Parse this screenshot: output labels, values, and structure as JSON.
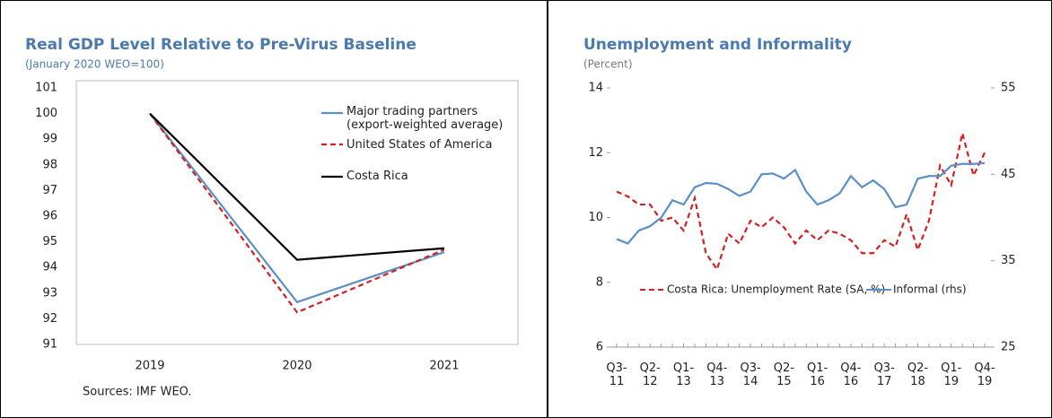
{
  "chart_data": [
    {
      "type": "line",
      "title": "Real GDP Level Relative to Pre-Virus Baseline",
      "subtitle": "(January 2020 WEO=100)",
      "categories": [
        "2019",
        "2020",
        "2021"
      ],
      "series": [
        {
          "name": "Major trading partners (export-weighted average)",
          "color": "#5b8fc7",
          "linestyle": "solid",
          "values": [
            100,
            92.65,
            94.6
          ]
        },
        {
          "name": "United States of America",
          "color": "#d42020",
          "linestyle": "dashed",
          "values": [
            100,
            92.25,
            94.7
          ]
        },
        {
          "name": "Costa Rica",
          "color": "#000000",
          "linestyle": "solid",
          "values": [
            100,
            94.3,
            94.75
          ]
        }
      ],
      "ylim": [
        91,
        101
      ],
      "yticks": [
        91,
        92,
        93,
        94,
        95,
        96,
        97,
        98,
        99,
        100,
        101
      ],
      "legend": "upper right",
      "note": "Sources: IMF WEO."
    },
    {
      "type": "line",
      "title": "Unemployment and Informality",
      "subtitle": "(Percent)",
      "categories": [
        "Q3-\n11",
        null,
        null,
        "Q2-\n12",
        null,
        null,
        "Q1-\n13",
        null,
        null,
        "Q4-\n13",
        null,
        null,
        "Q3-\n14",
        null,
        null,
        "Q2-\n15",
        null,
        null,
        "Q1-\n16",
        null,
        null,
        "Q4-\n16",
        null,
        null,
        "Q3-\n17",
        null,
        null,
        "Q2-\n18",
        null,
        null,
        "Q1-\n19",
        null,
        null,
        "Q4-\n19"
      ],
      "series": [
        {
          "name": "Costa Rica: Unemployment Rate (SA, %)",
          "color": "#d42020",
          "linestyle": "dashed",
          "axis": "y",
          "values": [
            10.8,
            10.65,
            10.4,
            10.4,
            9.9,
            10.0,
            9.6,
            10.6,
            8.9,
            8.4,
            9.5,
            9.2,
            9.9,
            9.7,
            10.0,
            9.7,
            9.2,
            9.6,
            9.3,
            9.6,
            9.5,
            9.3,
            8.9,
            8.9,
            9.3,
            9.1,
            10.1,
            9.0,
            9.9,
            11.6,
            11.0,
            12.6,
            11.3,
            12.0
          ]
        },
        {
          "name": "Informal (rhs)",
          "color": "#5b8fc7",
          "linestyle": "solid",
          "axis": "y2",
          "values": [
            37.5,
            37.0,
            38.5,
            39.0,
            40.0,
            42.0,
            41.5,
            43.5,
            44.0,
            43.9,
            43.3,
            42.5,
            43.0,
            45.0,
            45.1,
            44.5,
            45.5,
            43.0,
            41.5,
            42.0,
            42.8,
            44.8,
            43.5,
            44.3,
            43.3,
            41.2,
            41.5,
            44.5,
            44.8,
            44.8,
            46.0,
            46.2,
            46.2,
            46.3
          ]
        }
      ],
      "ylim": [
        6,
        14
      ],
      "yticks": [
        6,
        8,
        10,
        12,
        14
      ],
      "y2lim": [
        25,
        55
      ],
      "y2ticks": [
        25,
        35,
        45,
        55
      ],
      "legend": "lower center"
    }
  ]
}
